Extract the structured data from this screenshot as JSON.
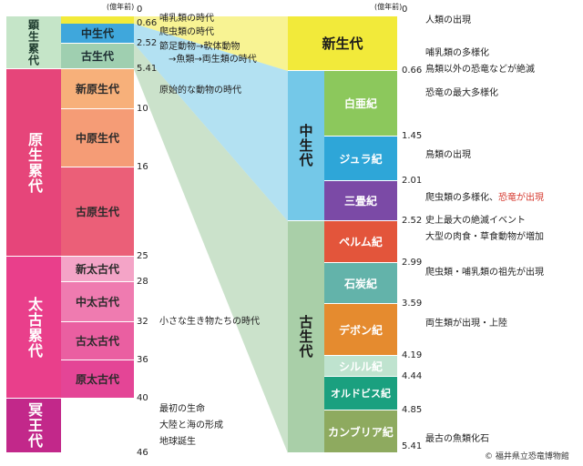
{
  "unit_label": "(億年前)",
  "colors": {
    "cenozoic": "#f2ea3a",
    "mesozoic": "#74c8e8",
    "paleozoic": "#a9cfa8",
    "proterozoic_eon": "#e6457a",
    "archean_eon": "#e93f8b",
    "hadean_eon": "#c2288a",
    "highlight_red": "#d63a2f"
  },
  "left_column": {
    "eons": [
      {
        "label": "顕生累代",
        "start": 0,
        "end": 5.41,
        "color": "#c5e5c8"
      },
      {
        "label": "原生累代",
        "start": 5.41,
        "end": 25,
        "color": "#e6457a"
      },
      {
        "label": "太古累代",
        "start": 25,
        "end": 40,
        "color": "#e93f8b"
      },
      {
        "label": "冥王代",
        "start": 40,
        "end": 46,
        "color": "#c2288a"
      }
    ],
    "eras": [
      {
        "label": "中生代",
        "start": 0.66,
        "end": 2.52,
        "color": "#3fa7dc"
      },
      {
        "label": "古生代",
        "start": 2.52,
        "end": 5.41,
        "color": "#9fcfb0"
      },
      {
        "label": "新原生代",
        "start": 5.41,
        "end": 10,
        "color": "#f7b07a"
      },
      {
        "label": "中原生代",
        "start": 10,
        "end": 16,
        "color": "#f59c76"
      },
      {
        "label": "古原生代",
        "start": 16,
        "end": 25,
        "color": "#eb5f78"
      },
      {
        "label": "新太古代",
        "start": 25,
        "end": 28,
        "color": "#f4a4c7"
      },
      {
        "label": "中太古代",
        "start": 28,
        "end": 32,
        "color": "#ef7bb0"
      },
      {
        "label": "古太古代",
        "start": 32,
        "end": 36,
        "color": "#ea5fa1"
      },
      {
        "label": "原太古代",
        "start": 36,
        "end": 40,
        "color": "#e44596"
      }
    ],
    "boundaries": [
      "0",
      "0.66",
      "2.52",
      "5.41",
      "10",
      "16",
      "25",
      "28",
      "32",
      "36",
      "40",
      "46"
    ],
    "notes": [
      {
        "text": "哺乳類の時代"
      },
      {
        "text": "爬虫類の時代"
      },
      {
        "text": "節足動物→軟体動物"
      },
      {
        "text": "→魚類→両生類の時代"
      },
      {
        "text": "原始的な動物の時代"
      },
      {
        "text": "小さな生き物たちの時代"
      },
      {
        "text": "最初の生命"
      },
      {
        "text": "大陸と海の形成"
      },
      {
        "text": "地球誕生"
      }
    ]
  },
  "right_column": {
    "eras": [
      {
        "label": "新生代",
        "start": 0,
        "end": 0.66,
        "color": "#f2ea3a"
      },
      {
        "label": "中生代",
        "start": 0.66,
        "end": 2.52,
        "color": "#74c8e8"
      },
      {
        "label": "古生代",
        "start": 2.52,
        "end": 5.41,
        "color": "#a9cfa8"
      }
    ],
    "periods": [
      {
        "label": "白亜紀",
        "start": 0.66,
        "end": 1.45,
        "color": "#8cc85c"
      },
      {
        "label": "ジュラ紀",
        "start": 1.45,
        "end": 2.01,
        "color": "#2ea6d8"
      },
      {
        "label": "三畳紀",
        "start": 2.01,
        "end": 2.52,
        "color": "#7b4aa6"
      },
      {
        "label": "ペルム紀",
        "start": 2.52,
        "end": 2.99,
        "color": "#e3553b"
      },
      {
        "label": "石炭紀",
        "start": 2.99,
        "end": 3.59,
        "color": "#63b3aa"
      },
      {
        "label": "デボン紀",
        "start": 3.59,
        "end": 4.19,
        "color": "#e58b2f"
      },
      {
        "label": "シルル紀",
        "start": 4.19,
        "end": 4.44,
        "color": "#bfe3cf"
      },
      {
        "label": "オルドビス紀",
        "start": 4.44,
        "end": 4.85,
        "color": "#1aa07f"
      },
      {
        "label": "カンブリア紀",
        "start": 4.85,
        "end": 5.41,
        "color": "#8eaa5f"
      }
    ],
    "boundaries": [
      "0",
      "0.66",
      "1.45",
      "2.01",
      "2.52",
      "2.99",
      "3.59",
      "4.19",
      "4.44",
      "4.85",
      "5.41"
    ],
    "notes": [
      {
        "text": "人類の出現"
      },
      {
        "text": "哺乳類の多様化"
      },
      {
        "text": "鳥類以外の恐竜などが絶滅"
      },
      {
        "text": "恐竜の最大多様化"
      },
      {
        "text": "鳥類の出現"
      },
      {
        "text": "爬虫類の多様化、",
        "highlight": "恐竜が出現"
      },
      {
        "text": "史上最大の絶滅イベント"
      },
      {
        "text": "大型の肉食・草食動物が増加"
      },
      {
        "text": "爬虫類・哺乳類の祖先が出現"
      },
      {
        "text": "両生類が出現・上陸"
      },
      {
        "text": "最古の魚類化石"
      }
    ]
  },
  "credit": "© 福井県立恐竜博物館"
}
